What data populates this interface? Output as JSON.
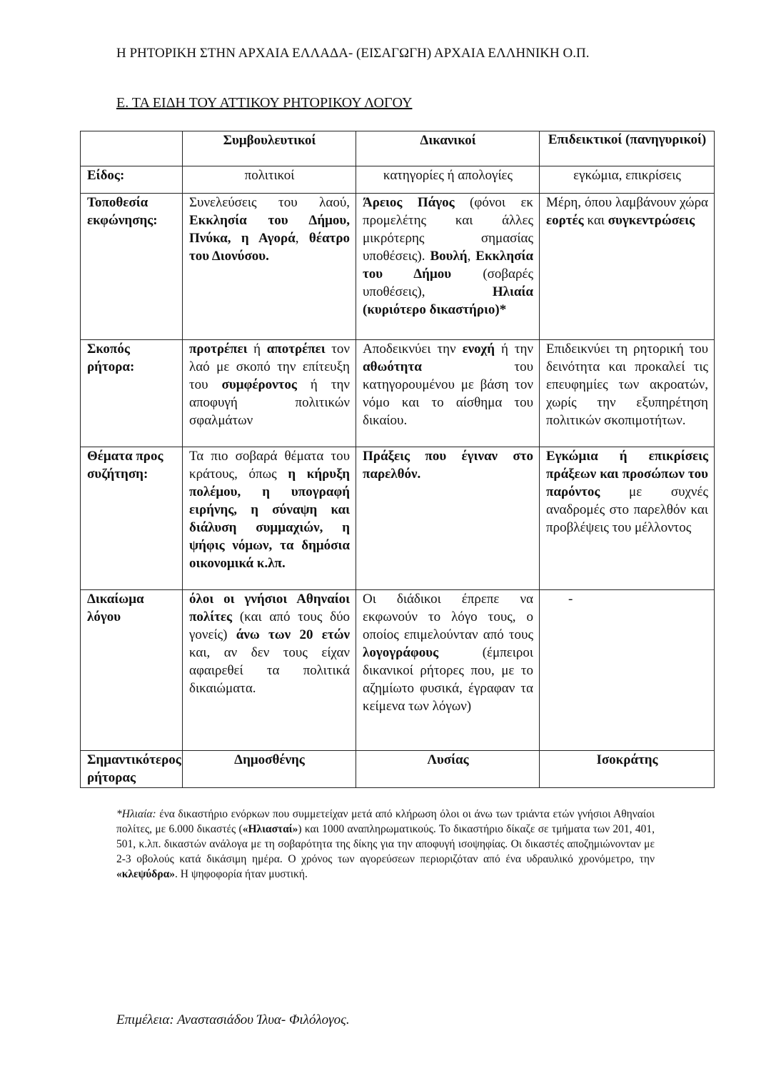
{
  "header": "Η ΡΗΤΟΡΙΚΗ ΣΤΗΝ ΑΡΧΑΙΑ ΕΛΛΑΔΑ- (ΕΙΣΑΓΩΓΗ) ΑΡΧΑΙΑ ΕΛΛΗΝΙΚΗ Ο.Π.",
  "section_title": "Ε. ΤΑ ΕΙΔΗ ΤΟΥ ΑΤΤΙΚΟΥ ΡΗΤΟΡΙΚΟΥ ΛΟΓΟΥ",
  "table": {
    "columns": [
      "",
      "Συμβουλευτικοί",
      "Δικανικοί",
      "Επιδεικτικοί (πανηγυρικοί)"
    ],
    "rows": [
      {
        "label": "Είδος:",
        "cells": [
          [
            {
              "t": "πολιτικοί"
            }
          ],
          [
            {
              "t": "κατηγορίες ή απολογίες"
            }
          ],
          [
            {
              "t": "εγκώμια, επικρίσεις"
            }
          ]
        ]
      },
      {
        "label": "Τοποθεσία εκφώνησης:",
        "cells": [
          [
            {
              "t": "Συνελεύσεις του λαού, "
            },
            {
              "t": "Εκκλησία του Δήμου, Πνύκα, η Αγορά",
              "b": true
            },
            {
              "t": ", "
            },
            {
              "t": "θέατρο του Διονύσου.",
              "b": true
            }
          ],
          [
            {
              "t": "Άρειος Πάγος",
              "b": true
            },
            {
              "t": " (φόνοι εκ προμελέτης και άλλες μικρότερης σημασίας υποθέσεις). "
            },
            {
              "t": "Βουλή",
              "b": true
            },
            {
              "t": ", "
            },
            {
              "t": "Εκκλησία του Δήμου",
              "b": true
            },
            {
              "t": " (σοβαρές υποθέσεις), "
            },
            {
              "t": "Ηλιαία (κυριότερο δικαστήριο)*",
              "b": true
            }
          ],
          [
            {
              "t": "Μέρη, όπου λαμβάνουν χώρα "
            },
            {
              "t": "εορτές",
              "b": true
            },
            {
              "t": " και "
            },
            {
              "t": "συγκεντρώσεις",
              "b": true
            }
          ]
        ]
      },
      {
        "label": "Σκοπός ρήτορα:",
        "cells": [
          [
            {
              "t": "προτρέπει",
              "b": true
            },
            {
              "t": " ή "
            },
            {
              "t": "αποτρέπει",
              "b": true
            },
            {
              "t": " τον λαό με σκοπό την επίτευξη του "
            },
            {
              "t": "συμφέροντος",
              "b": true
            },
            {
              "t": " ή την αποφυγή πολιτικών σφαλμάτων"
            }
          ],
          [
            {
              "t": "Αποδεικνύει την "
            },
            {
              "t": "ενοχή",
              "b": true
            },
            {
              "t": " ή την "
            },
            {
              "t": "αθωότητα",
              "b": true
            },
            {
              "t": " του κατηγορουμένου με βάση τον νόμο και το αίσθημα του δικαίου."
            }
          ],
          [
            {
              "t": "Επιδεικνύει τη ρητορική του δεινότητα και προκαλεί τις επευφημίες των ακροατών, χωρίς την εξυπηρέτηση πολιτικών σκοπιμοτήτων."
            }
          ]
        ]
      },
      {
        "label": "Θέματα προς συζήτηση:",
        "cells": [
          [
            {
              "t": "Τα πιο σοβαρά θέματα του κράτους, όπως "
            },
            {
              "t": "η κήρυξη πολέμου, η υπογραφή ειρήνης, η σύναψη και διάλυση συμμαχιών, η ψήφις νόμων, τα δημόσια οικονομικά κ.λπ.",
              "b": true
            }
          ],
          [
            {
              "t": "Πράξεις που έγιναν στο παρελθόν.",
              "b": true
            }
          ],
          [
            {
              "t": "Εγκώμια ή επικρίσεις πράξεων και προσώπων του παρόντος",
              "b": true
            },
            {
              "t": " με συχνές αναδρομές στο παρελθόν και προβλέψεις του μέλλοντος"
            }
          ]
        ]
      },
      {
        "label": "Δικαίωμα λόγου",
        "cells": [
          [
            {
              "t": "όλοι οι γνήσιοι Αθηναίοι πολίτες",
              "b": true
            },
            {
              "t": " (και από τους δύο γονείς) "
            },
            {
              "t": "άνω των 20 ετών",
              "b": true
            },
            {
              "t": " και, αν δεν τους είχαν αφαιρεθεί τα πολιτικά δικαιώματα."
            }
          ],
          [
            {
              "t": "Οι διάδικοι έπρεπε να εκφωνούν το λόγο τους, ο οποίος επιμελούνταν από τους "
            },
            {
              "t": "λογογράφους",
              "b": true
            },
            {
              "t": " (έμπειροι δικανικοί ρήτορες που, με το αζημίωτο φυσικά, έγραφαν τα κείμενα των λόγων)"
            }
          ],
          [
            {
              "t": "-"
            }
          ]
        ]
      },
      {
        "label": "Σημαντικότερος ρήτορας",
        "cells": [
          [
            {
              "t": "Δημοσθένης",
              "b": true
            }
          ],
          [
            {
              "t": "Λυσίας",
              "b": true
            }
          ],
          [
            {
              "t": "Ισοκράτης",
              "b": true
            }
          ]
        ]
      }
    ]
  },
  "footnote": [
    {
      "t": "*Ηλιαία:",
      "i": true
    },
    {
      "t": " ένα δικαστήριο ενόρκων που συμμετείχαν μετά από κλήρωση όλοι οι άνω των τριάντα ετών γνήσιοι Αθηναίοι πολίτες, με 6.000 δικαστές ("
    },
    {
      "t": "«Ηλιασταί»",
      "b": true
    },
    {
      "t": ") και 1000 αναπληρωματικούς. Το δικαστήριο δίκαζε σε τμήματα των 201, 401, 501, κ.λπ. δικαστών ανάλογα με τη σοβαρότητα της δίκης για την αποφυγή ισοψηφίας. Οι δικαστές αποζημιώνονταν με 2-3 οβολούς κατά δικάσιμη ημέρα. Ο χρόνος των αγορεύσεων περιοριζόταν από ένα υδραυλικό χρονόμετρο, την "
    },
    {
      "t": "«κλεψύδρα»",
      "b": true
    },
    {
      "t": ". Η ψηφοφορία ήταν μυστική."
    }
  ],
  "footer": "Επιμέλεια: Αναστασιάδου Ίλυα- Φιλόλογος."
}
